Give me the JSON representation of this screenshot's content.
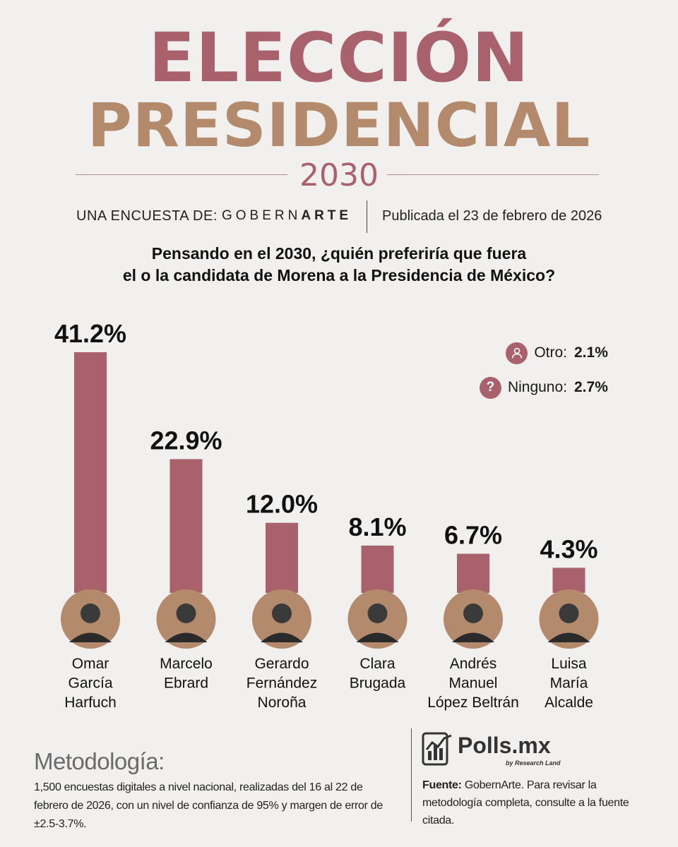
{
  "header": {
    "title_line1": "ELECCIÓN",
    "title_line2": "PRESIDENCIAL",
    "year": "2030",
    "survey_by_label": "UNA ENCUESTA DE:",
    "brand_part1": "GOBERN",
    "brand_part2": "ARTE",
    "published": "Publicada el 23 de febrero de 2026"
  },
  "question": {
    "line1": "Pensando en el 2030, ¿quién preferiría que fuera",
    "line2": "el o la candidata de Morena a la Presidencia de México?"
  },
  "chart_data": {
    "type": "bar",
    "categories": [
      "Omar García Harfuch",
      "Marcelo Ebrard",
      "Gerardo Fernández Noroña",
      "Clara Brugada",
      "Andrés Manuel López Beltrán",
      "Luisa María Alcalde"
    ],
    "name_lines": [
      [
        "Omar",
        "García",
        "Harfuch"
      ],
      [
        "Marcelo",
        "Ebrard"
      ],
      [
        "Gerardo",
        "Fernández",
        "Noroña"
      ],
      [
        "Clara",
        "Brugada"
      ],
      [
        "Andrés",
        "Manuel",
        "López Beltrán"
      ],
      [
        "Luisa",
        "María",
        "Alcalde"
      ]
    ],
    "values": [
      41.2,
      22.9,
      12.0,
      8.1,
      6.7,
      4.3
    ],
    "value_labels": [
      "41.2%",
      "22.9%",
      "12.0%",
      "8.1%",
      "6.7%",
      "4.3%"
    ],
    "ylim": [
      0,
      41.2
    ],
    "grid": false,
    "colors": {
      "bar": "#a9616c",
      "avatar": "#b48a6d"
    },
    "extra": [
      {
        "label": "Otro:",
        "value": "2.1%",
        "icon": "person-icon"
      },
      {
        "label": "Ninguno:",
        "value": "2.7%",
        "icon": "question-icon"
      }
    ]
  },
  "methodology": {
    "title": "Metodología:",
    "text": "1,500 encuestas digitales a nivel nacional, realizadas del 16 al 22 de febrero de 2026, con un nivel de confianza de 95% y margen de error de ±2.5-3.7%."
  },
  "footer": {
    "logo_name": "Polls.mx",
    "logo_sub": "by Research Land",
    "source_label": "Fuente:",
    "source_text": " GobernArte. Para revisar la metodología completa, consulte a la fuente citada."
  },
  "colors": {
    "title_primary": "#a9616c",
    "title_secondary": "#b48a6d",
    "background": "#f1f0ee"
  }
}
